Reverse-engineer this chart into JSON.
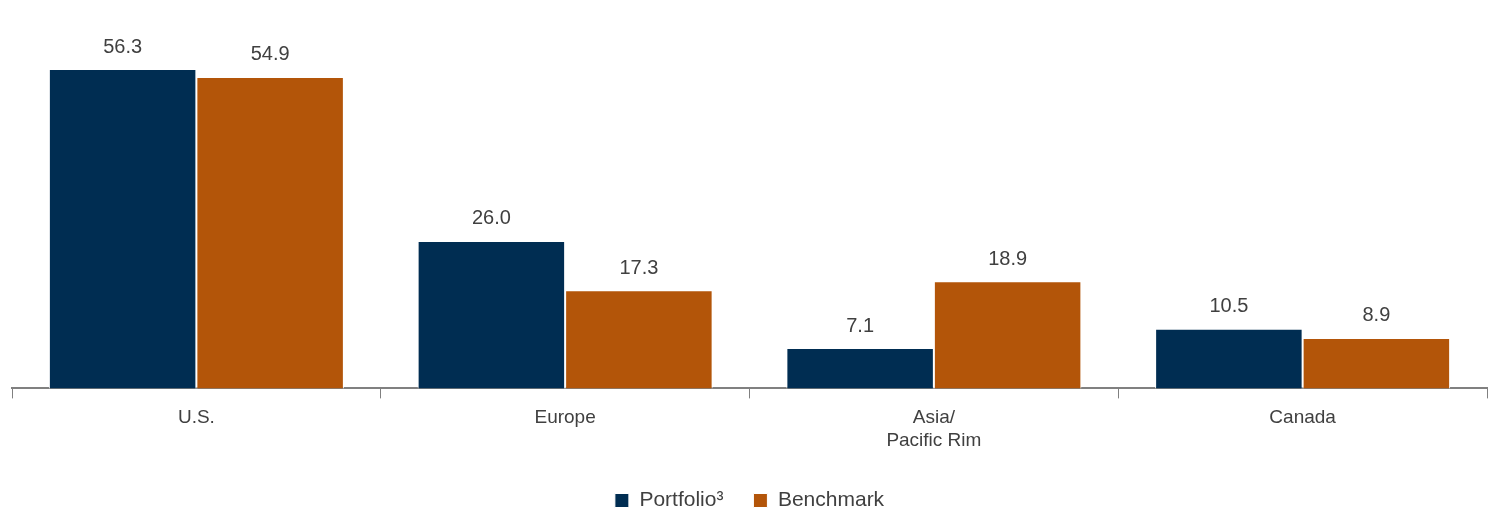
{
  "chart_data": {
    "type": "bar",
    "categories": [
      "U.S.",
      "Europe",
      "Asia/\nPacific Rim",
      "Canada"
    ],
    "series": [
      {
        "name": "Portfolio³",
        "color": "#002d52",
        "values": [
          56.3,
          26.0,
          7.1,
          10.5
        ],
        "value_labels": [
          "56.3",
          "26.0",
          "7.1",
          "10.5"
        ]
      },
      {
        "name": "Benchmark",
        "color": "#b35509",
        "values": [
          54.9,
          17.3,
          18.9,
          8.9
        ],
        "value_labels": [
          "54.9",
          "17.3",
          "18.9",
          "8.9"
        ]
      }
    ],
    "legend": "bottom"
  }
}
